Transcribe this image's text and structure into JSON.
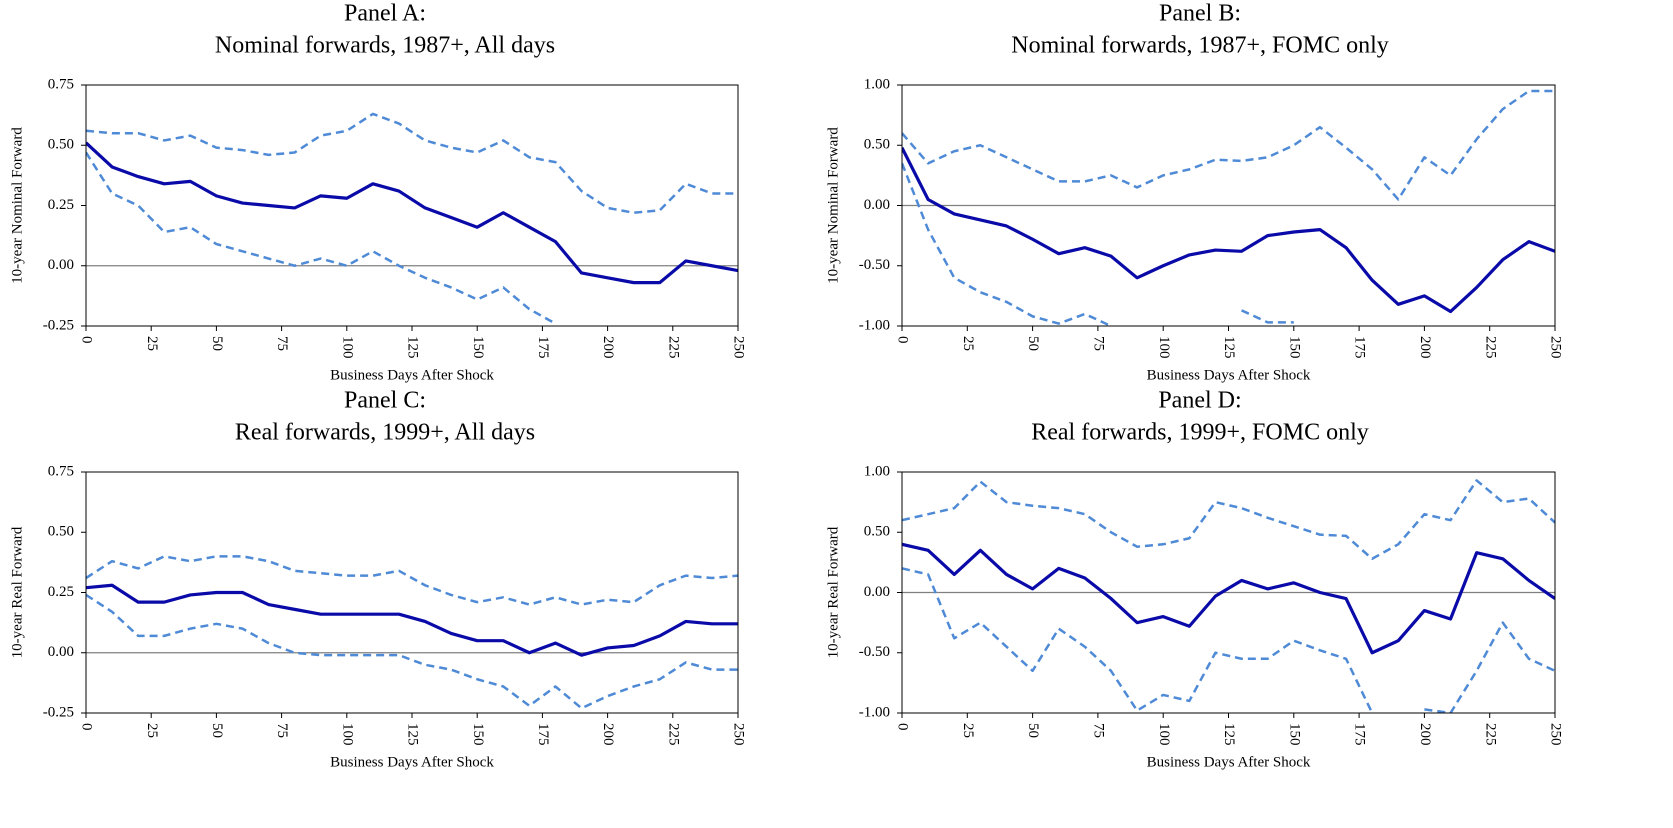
{
  "chart_data": [
    {
      "type": "line",
      "title": "Panel A:",
      "subtitle": "Nominal forwards, 1987+, All days",
      "xlabel": "Business Days After Shock",
      "ylabel": "10-year Nominal Forward",
      "x": [
        0,
        10,
        20,
        30,
        40,
        50,
        60,
        70,
        80,
        90,
        100,
        110,
        120,
        130,
        140,
        150,
        160,
        170,
        180,
        190,
        200,
        210,
        220,
        230,
        240,
        250
      ],
      "xlim": [
        0,
        250
      ],
      "xticks": [
        0,
        25,
        50,
        75,
        100,
        125,
        150,
        175,
        200,
        225,
        250
      ],
      "ylim": [
        -0.25,
        0.75
      ],
      "yticks": [
        -0.25,
        {
          "value": 0,
          "label": "0.00"
        },
        0.25,
        {
          "value": 0.5,
          "label": "0.50"
        },
        0.75
      ],
      "series": [
        {
          "color": "#0a0aa8",
          "dashed": false,
          "values": [
            0.51,
            0.41,
            0.37,
            0.34,
            0.35,
            0.29,
            0.26,
            0.25,
            0.24,
            0.29,
            0.28,
            0.34,
            0.31,
            0.24,
            0.2,
            0.16,
            0.22,
            0.16,
            0.1,
            -0.03,
            -0.05,
            -0.07,
            -0.07,
            0.02,
            0.0,
            -0.02
          ]
        },
        {
          "color": "#4f8ad6",
          "dashed": true,
          "values": [
            0.56,
            0.55,
            0.55,
            0.52,
            0.54,
            0.49,
            0.48,
            0.46,
            0.47,
            0.54,
            0.56,
            0.63,
            0.59,
            0.52,
            0.49,
            0.47,
            0.52,
            0.45,
            0.43,
            0.31,
            0.24,
            0.22,
            0.23,
            0.34,
            0.3,
            0.3
          ]
        },
        {
          "color": "#4f8ad6",
          "dashed": true,
          "values": [
            0.47,
            0.3,
            0.25,
            0.14,
            0.16,
            0.09,
            0.06,
            0.03,
            0.0,
            0.03,
            0.0,
            0.06,
            0.0,
            -0.05,
            -0.09,
            -0.14,
            -0.09,
            -0.18,
            -0.24,
            null,
            null,
            null,
            null,
            null,
            null,
            null
          ]
        }
      ]
    },
    {
      "type": "line",
      "title": "Panel B:",
      "subtitle": "Nominal forwards, 1987+, FOMC only",
      "xlabel": "Business Days After Shock",
      "ylabel": "10-year Nominal Forward",
      "x": [
        0,
        10,
        20,
        30,
        40,
        50,
        60,
        70,
        80,
        90,
        100,
        110,
        120,
        130,
        140,
        150,
        160,
        170,
        180,
        190,
        200,
        210,
        220,
        230,
        240,
        250
      ],
      "xlim": [
        0,
        250
      ],
      "xticks": [
        0,
        25,
        50,
        75,
        100,
        125,
        150,
        175,
        200,
        225,
        250
      ],
      "ylim": [
        -1,
        1
      ],
      "yticks": [
        {
          "value": -1,
          "label": "-1.00"
        },
        {
          "value": -0.5,
          "label": "-0.50"
        },
        {
          "value": 0,
          "label": "0.00"
        },
        {
          "value": 0.5,
          "label": "0.50"
        },
        {
          "value": 1,
          "label": "1.00"
        }
      ],
      "series": [
        {
          "color": "#0a0aa8",
          "dashed": false,
          "values": [
            0.48,
            0.05,
            -0.07,
            -0.12,
            -0.17,
            -0.28,
            -0.4,
            -0.35,
            -0.42,
            -0.6,
            -0.5,
            -0.41,
            -0.37,
            -0.38,
            -0.25,
            -0.22,
            -0.2,
            -0.35,
            -0.62,
            -0.82,
            -0.75,
            -0.88,
            -0.68,
            -0.45,
            -0.3,
            -0.38
          ]
        },
        {
          "color": "#4f8ad6",
          "dashed": true,
          "values": [
            0.6,
            0.35,
            0.45,
            0.5,
            0.4,
            0.3,
            0.2,
            0.2,
            0.25,
            0.15,
            0.25,
            0.3,
            0.38,
            0.37,
            0.4,
            0.5,
            0.65,
            0.48,
            0.3,
            0.05,
            0.4,
            0.25,
            0.55,
            0.8,
            0.95,
            0.95
          ]
        },
        {
          "color": "#4f8ad6",
          "dashed": true,
          "values": [
            0.35,
            -0.2,
            -0.6,
            -0.72,
            -0.8,
            -0.92,
            -0.98,
            -0.9,
            -1.0,
            null,
            null,
            null,
            null,
            -0.87,
            -0.97,
            -0.97,
            null,
            null,
            null,
            null,
            null,
            null,
            null,
            null,
            null,
            null
          ]
        }
      ]
    },
    {
      "type": "line",
      "title": "Panel C:",
      "subtitle": "Real forwards, 1999+, All days",
      "xlabel": "Business Days After Shock",
      "ylabel": "10-year Real Forward",
      "x": [
        0,
        10,
        20,
        30,
        40,
        50,
        60,
        70,
        80,
        90,
        100,
        110,
        120,
        130,
        140,
        150,
        160,
        170,
        180,
        190,
        200,
        210,
        220,
        230,
        240,
        250
      ],
      "xlim": [
        0,
        250
      ],
      "xticks": [
        0,
        25,
        50,
        75,
        100,
        125,
        150,
        175,
        200,
        225,
        250
      ],
      "ylim": [
        -0.25,
        0.75
      ],
      "yticks": [
        -0.25,
        {
          "value": 0,
          "label": "0.00"
        },
        0.25,
        {
          "value": 0.5,
          "label": "0.50"
        },
        0.75
      ],
      "series": [
        {
          "color": "#0a0aa8",
          "dashed": false,
          "values": [
            0.27,
            0.28,
            0.21,
            0.21,
            0.24,
            0.25,
            0.25,
            0.2,
            0.18,
            0.16,
            0.16,
            0.16,
            0.16,
            0.13,
            0.08,
            0.05,
            0.05,
            0.0,
            0.04,
            -0.01,
            0.02,
            0.03,
            0.07,
            0.13,
            0.12,
            0.12
          ]
        },
        {
          "color": "#4f8ad6",
          "dashed": true,
          "values": [
            0.31,
            0.38,
            0.35,
            0.4,
            0.38,
            0.4,
            0.4,
            0.38,
            0.34,
            0.33,
            0.32,
            0.32,
            0.34,
            0.28,
            0.24,
            0.21,
            0.23,
            0.2,
            0.23,
            0.2,
            0.22,
            0.21,
            0.28,
            0.32,
            0.31,
            0.32
          ]
        },
        {
          "color": "#4f8ad6",
          "dashed": true,
          "values": [
            0.24,
            0.17,
            0.07,
            0.07,
            0.1,
            0.12,
            0.1,
            0.04,
            0.0,
            -0.01,
            -0.01,
            -0.01,
            -0.01,
            -0.05,
            -0.07,
            -0.11,
            -0.14,
            -0.22,
            -0.14,
            -0.23,
            -0.18,
            -0.14,
            -0.11,
            -0.04,
            -0.07,
            -0.07
          ]
        }
      ]
    },
    {
      "type": "line",
      "title": "Panel D:",
      "subtitle": "Real forwards, 1999+, FOMC only",
      "xlabel": "Business Days After Shock",
      "ylabel": "10-year Real Forward",
      "x": [
        0,
        10,
        20,
        30,
        40,
        50,
        60,
        70,
        80,
        90,
        100,
        110,
        120,
        130,
        140,
        150,
        160,
        170,
        180,
        190,
        200,
        210,
        220,
        230,
        240,
        250
      ],
      "xlim": [
        0,
        250
      ],
      "xticks": [
        0,
        25,
        50,
        75,
        100,
        125,
        150,
        175,
        200,
        225,
        250
      ],
      "ylim": [
        -1,
        1
      ],
      "yticks": [
        {
          "value": -1,
          "label": "-1.00"
        },
        {
          "value": -0.5,
          "label": "-0.50"
        },
        {
          "value": 0,
          "label": "0.00"
        },
        {
          "value": 0.5,
          "label": "0.50"
        },
        {
          "value": 1,
          "label": "1.00"
        }
      ],
      "series": [
        {
          "color": "#0a0aa8",
          "dashed": false,
          "values": [
            0.4,
            0.35,
            0.15,
            0.35,
            0.15,
            0.03,
            0.2,
            0.12,
            -0.05,
            -0.25,
            -0.2,
            -0.28,
            -0.03,
            0.1,
            0.03,
            0.08,
            0.0,
            -0.05,
            -0.5,
            -0.4,
            -0.15,
            -0.22,
            0.33,
            0.28,
            0.1,
            -0.05
          ]
        },
        {
          "color": "#4f8ad6",
          "dashed": true,
          "values": [
            0.6,
            0.65,
            0.7,
            0.92,
            0.75,
            0.72,
            0.7,
            0.65,
            0.5,
            0.38,
            0.4,
            0.45,
            0.75,
            0.7,
            0.62,
            0.55,
            0.48,
            0.47,
            0.28,
            0.4,
            0.65,
            0.6,
            0.93,
            0.75,
            0.78,
            0.58
          ]
        },
        {
          "color": "#4f8ad6",
          "dashed": true,
          "values": [
            0.2,
            0.15,
            -0.38,
            -0.25,
            -0.45,
            -0.65,
            -0.3,
            -0.45,
            -0.65,
            -0.98,
            -0.85,
            -0.9,
            -0.5,
            -0.55,
            -0.55,
            -0.4,
            -0.48,
            -0.55,
            -1.0,
            null,
            -0.97,
            -1.0,
            -0.65,
            -0.25,
            -0.55,
            -0.65
          ]
        }
      ]
    }
  ]
}
